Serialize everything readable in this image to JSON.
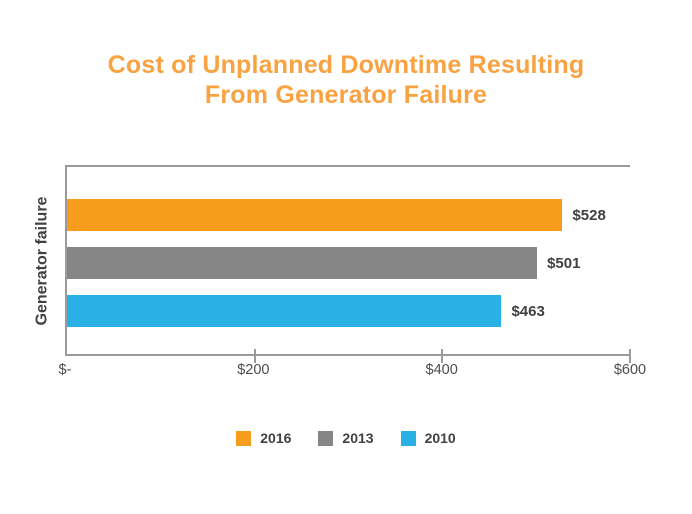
{
  "title": {
    "line1": "Cost of Unplanned Downtime Resulting",
    "line2": "From Generator Failure"
  },
  "colors": {
    "title_text": "#F9A241",
    "axis_line": "#9B9B9B",
    "label_text": "#414042",
    "tick_text": "#4D4D4F",
    "bar_2016": "#F89C1E",
    "bar_2013": "#868686",
    "bar_2010": "#29B1E6"
  },
  "chart_data": {
    "type": "bar",
    "orientation": "horizontal",
    "title": "Cost of Unplanned Downtime Resulting From Generator Failure",
    "categories": [
      "Generator failure"
    ],
    "category_axis_label": "Generator failure",
    "series": [
      {
        "name": "2016",
        "values": [
          528
        ],
        "data_label": "$528",
        "color": "#F89C1E"
      },
      {
        "name": "2013",
        "values": [
          501
        ],
        "data_label": "$501",
        "color": "#868686"
      },
      {
        "name": "2010",
        "values": [
          463
        ],
        "data_label": "$463",
        "color": "#29B1E6"
      }
    ],
    "xlabel": "",
    "ylabel": "Generator failure",
    "xlim": [
      0,
      600
    ],
    "x_ticks": [
      {
        "value": 0,
        "label": "$-"
      },
      {
        "value": 200,
        "label": "$200"
      },
      {
        "value": 400,
        "label": "$400"
      },
      {
        "value": 600,
        "label": "$600"
      }
    ],
    "grid": "off",
    "legend_position": "bottom",
    "legend_entries": [
      "2016",
      "2013",
      "2010"
    ]
  }
}
